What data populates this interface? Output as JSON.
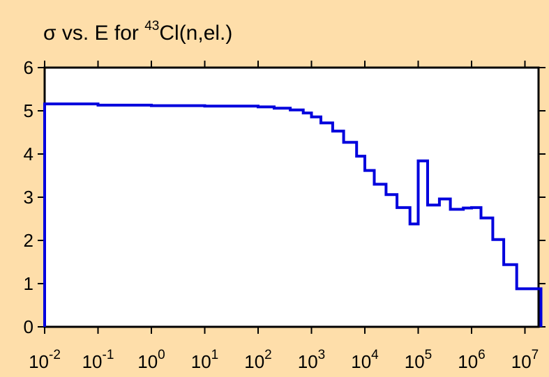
{
  "chart_data": {
    "type": "line",
    "step": true,
    "title_parts": {
      "prefix": "σ vs. E for ",
      "superscript": "43",
      "suffix": "Cl(n,el.)"
    },
    "xlabel": "",
    "ylabel": "",
    "x_scale": "log",
    "xlim": [
      0.01,
      20000000
    ],
    "ylim": [
      0,
      6
    ],
    "y_ticks": [
      "0",
      "1",
      "2",
      "3",
      "4",
      "5",
      "6"
    ],
    "x_ticks": [
      {
        "base": "10",
        "exp": "-2"
      },
      {
        "base": "10",
        "exp": "-1"
      },
      {
        "base": "10",
        "exp": "0"
      },
      {
        "base": "10",
        "exp": "1"
      },
      {
        "base": "10",
        "exp": "2"
      },
      {
        "base": "10",
        "exp": "3"
      },
      {
        "base": "10",
        "exp": "4"
      },
      {
        "base": "10",
        "exp": "5"
      },
      {
        "base": "10",
        "exp": "6"
      },
      {
        "base": "10",
        "exp": "7"
      }
    ],
    "grid": false,
    "colors": {
      "line": "#0000DD",
      "background": "#FEDEAA",
      "plot_bg": "#FFFFFF"
    },
    "series": [
      {
        "x": [
          0.01,
          0.1,
          1,
          10,
          100,
          200,
          400,
          700,
          1000,
          1500,
          2500,
          4000,
          7000,
          10000,
          15000,
          25000,
          40000,
          70000,
          100000,
          150000,
          250000,
          400000,
          700000,
          1000000,
          1500000,
          2500000,
          4000000,
          7000000,
          10000000,
          20000000
        ],
        "y": [
          5.16,
          5.13,
          5.12,
          5.11,
          5.09,
          5.06,
          5.02,
          4.95,
          4.86,
          4.72,
          4.53,
          4.27,
          3.95,
          3.62,
          3.3,
          3.06,
          2.76,
          2.38,
          3.84,
          2.82,
          2.96,
          2.72,
          2.75,
          2.76,
          2.52,
          2.02,
          1.44,
          0.88,
          0.88,
          0.0
        ]
      }
    ]
  }
}
